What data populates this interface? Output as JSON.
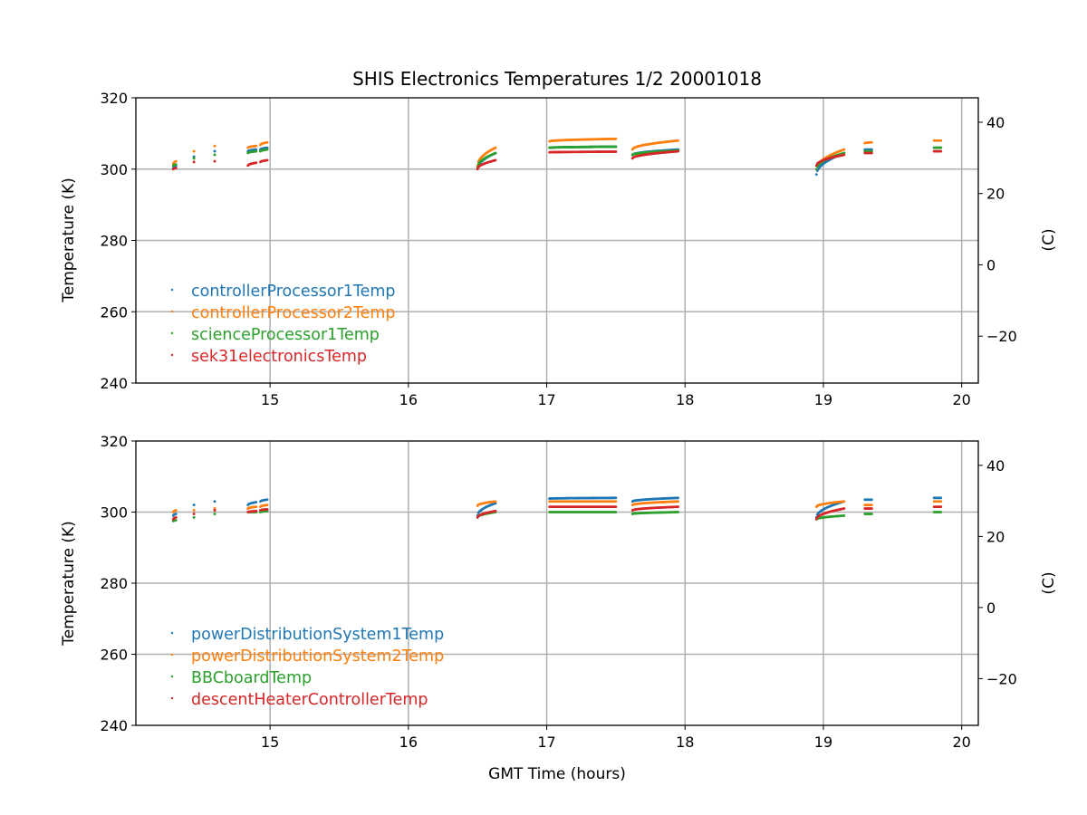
{
  "chart_data": {
    "type": "scatter",
    "title": "SHIS Electronics Temperatures 1/2 20001018",
    "xlabel": "GMT Time (hours)",
    "xlim": [
      14.03,
      20.12
    ],
    "xticks": [
      15,
      16,
      17,
      18,
      19,
      20
    ],
    "colors": [
      "#1f77b4",
      "#ff7f0e",
      "#2ca02c",
      "#d62728"
    ],
    "segment_format": "[t_start_hours, t_end_hours, temp_start_K, temp_end_K]",
    "panels": [
      {
        "ylabel": "Temperature (K)",
        "ylabel_right": "(C)",
        "ylim": [
          240,
          320
        ],
        "yticks": [
          240,
          260,
          280,
          300,
          320
        ],
        "yticks_right_C": [
          -20,
          0,
          20,
          40
        ],
        "legend_position": "lower-left",
        "series": [
          {
            "name": "controllerProcessor1Temp",
            "segments": [
              [
                14.3,
                14.32,
                300.3,
                300.8
              ],
              [
                14.45,
                14.45,
                303.5,
                303.5
              ],
              [
                14.6,
                14.6,
                305,
                305
              ],
              [
                14.84,
                14.9,
                305,
                305.5
              ],
              [
                14.93,
                14.98,
                305.5,
                306
              ],
              [
                16.5,
                16.63,
                300,
                304.5
              ],
              [
                17.02,
                17.5,
                306,
                306.3
              ],
              [
                17.62,
                17.95,
                304,
                305.5
              ],
              [
                18.95,
                19.15,
                298.5,
                304.5
              ],
              [
                19.3,
                19.35,
                305.5,
                305.5
              ],
              [
                19.8,
                19.85,
                306,
                306
              ]
            ]
          },
          {
            "name": "controllerProcessor2Temp",
            "segments": [
              [
                14.3,
                14.32,
                301.5,
                302.2
              ],
              [
                14.45,
                14.45,
                305,
                305
              ],
              [
                14.6,
                14.6,
                306.5,
                306.5
              ],
              [
                14.84,
                14.9,
                306,
                306.5
              ],
              [
                14.93,
                14.98,
                306.8,
                307.5
              ],
              [
                16.5,
                16.63,
                301,
                306
              ],
              [
                17.02,
                17.5,
                307.8,
                308.5
              ],
              [
                17.62,
                17.95,
                305.5,
                308
              ],
              [
                18.95,
                19.15,
                300,
                305.5
              ],
              [
                19.3,
                19.35,
                307.3,
                307.5
              ],
              [
                19.8,
                19.85,
                308,
                308
              ]
            ]
          },
          {
            "name": "scienceProcessor1Temp",
            "segments": [
              [
                14.3,
                14.32,
                301,
                301.3
              ],
              [
                14.45,
                14.45,
                303,
                303
              ],
              [
                14.6,
                14.6,
                304,
                304
              ],
              [
                14.84,
                14.9,
                304.5,
                305
              ],
              [
                14.93,
                14.98,
                305,
                305.5
              ],
              [
                16.5,
                16.63,
                300.5,
                304.5
              ],
              [
                17.02,
                17.5,
                306,
                306.3
              ],
              [
                17.62,
                17.95,
                304,
                305.2
              ],
              [
                18.95,
                19.15,
                300,
                304.5
              ],
              [
                19.3,
                19.35,
                305,
                305
              ],
              [
                19.8,
                19.85,
                306,
                306
              ]
            ]
          },
          {
            "name": "sek31electronicsTemp",
            "segments": [
              [
                14.3,
                14.32,
                300,
                300.3
              ],
              [
                14.45,
                14.45,
                302,
                302
              ],
              [
                14.6,
                14.6,
                302.2,
                302.2
              ],
              [
                14.84,
                14.9,
                301,
                301.8
              ],
              [
                14.93,
                14.98,
                302,
                302.5
              ],
              [
                16.5,
                16.63,
                300,
                302.5
              ],
              [
                17.02,
                17.5,
                304.7,
                304.9
              ],
              [
                17.62,
                17.95,
                303,
                305
              ],
              [
                18.95,
                19.15,
                301,
                304
              ],
              [
                19.3,
                19.35,
                304.5,
                304.5
              ],
              [
                19.8,
                19.85,
                305,
                305
              ]
            ]
          }
        ]
      },
      {
        "ylabel": "Temperature (K)",
        "ylabel_right": "(C)",
        "ylim": [
          240,
          320
        ],
        "yticks": [
          240,
          260,
          280,
          300,
          320
        ],
        "yticks_right_C": [
          -20,
          0,
          20,
          40
        ],
        "legend_position": "lower-left",
        "series": [
          {
            "name": "powerDistributionSystem1Temp",
            "segments": [
              [
                14.3,
                14.32,
                299,
                299.5
              ],
              [
                14.45,
                14.45,
                302,
                302
              ],
              [
                14.6,
                14.6,
                303,
                303
              ],
              [
                14.84,
                14.9,
                302,
                302.8
              ],
              [
                14.93,
                14.98,
                303,
                303.5
              ],
              [
                16.5,
                16.63,
                299,
                302.5
              ],
              [
                17.02,
                17.5,
                303.8,
                304
              ],
              [
                17.62,
                17.95,
                303,
                304
              ],
              [
                18.95,
                19.15,
                298.5,
                303
              ],
              [
                19.3,
                19.35,
                303.5,
                303.5
              ],
              [
                19.8,
                19.85,
                304,
                304
              ]
            ]
          },
          {
            "name": "powerDistributionSystem2Temp",
            "segments": [
              [
                14.3,
                14.32,
                300,
                300.5
              ],
              [
                14.45,
                14.45,
                300.5,
                300.5
              ],
              [
                14.6,
                14.6,
                301,
                301
              ],
              [
                14.84,
                14.9,
                301,
                301.5
              ],
              [
                14.93,
                14.98,
                301.5,
                302
              ],
              [
                16.5,
                16.63,
                301.8,
                303
              ],
              [
                17.02,
                17.5,
                303,
                303
              ],
              [
                17.62,
                17.95,
                302,
                303
              ],
              [
                18.95,
                19.15,
                301.5,
                303
              ],
              [
                19.3,
                19.35,
                302,
                302
              ],
              [
                19.8,
                19.85,
                303,
                303
              ]
            ]
          },
          {
            "name": "BBCboardTemp",
            "segments": [
              [
                14.3,
                14.32,
                297.5,
                297.7
              ],
              [
                14.45,
                14.45,
                298.5,
                298.5
              ],
              [
                14.6,
                14.6,
                299.5,
                299.5
              ],
              [
                14.84,
                14.9,
                300,
                300
              ],
              [
                14.93,
                14.98,
                300,
                300.3
              ],
              [
                16.5,
                16.63,
                298.5,
                300
              ],
              [
                17.02,
                17.5,
                300,
                300
              ],
              [
                17.62,
                17.95,
                299.5,
                300
              ],
              [
                18.95,
                19.15,
                298,
                299
              ],
              [
                19.3,
                19.35,
                299.5,
                299.5
              ],
              [
                19.8,
                19.85,
                300,
                300
              ]
            ]
          },
          {
            "name": "descentHeaterControllerTemp",
            "segments": [
              [
                14.3,
                14.32,
                298,
                298.5
              ],
              [
                14.45,
                14.45,
                299.5,
                299.5
              ],
              [
                14.6,
                14.6,
                300.5,
                300.5
              ],
              [
                14.84,
                14.9,
                300,
                300.3
              ],
              [
                14.93,
                14.98,
                300.5,
                300.8
              ],
              [
                16.5,
                16.63,
                298.5,
                300.3
              ],
              [
                17.02,
                17.5,
                301.5,
                301.5
              ],
              [
                17.62,
                17.95,
                300.5,
                301.5
              ],
              [
                18.95,
                19.15,
                298,
                301
              ],
              [
                19.3,
                19.35,
                301,
                301
              ],
              [
                19.8,
                19.85,
                301.5,
                301.5
              ]
            ]
          }
        ]
      }
    ]
  }
}
